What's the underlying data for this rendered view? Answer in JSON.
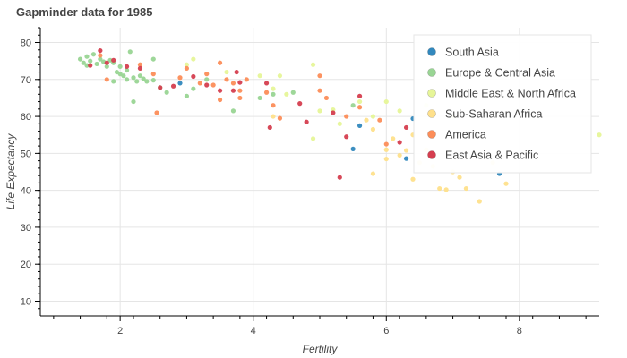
{
  "title": "Gapminder data for 1985",
  "chart_data": {
    "type": "scatter",
    "title": "Gapminder data for 1985",
    "xlabel": "Fertility",
    "ylabel": "Life Expectancy",
    "xlim": [
      0.8,
      9.2
    ],
    "ylim": [
      6,
      84
    ],
    "x_ticks": [
      2,
      4,
      6,
      8
    ],
    "y_ticks": [
      10,
      20,
      30,
      40,
      50,
      60,
      70,
      80
    ],
    "grid": true,
    "legend_position": "top-right",
    "series": [
      {
        "name": "South Asia",
        "color": "#3288bd",
        "points": [
          [
            2.9,
            69
          ],
          [
            5.5,
            51.2
          ],
          [
            5.6,
            57.5
          ],
          [
            6.3,
            48.6
          ],
          [
            6.4,
            59.4
          ],
          [
            7.7,
            44.5
          ]
        ]
      },
      {
        "name": "Europe & Central Asia",
        "color": "#99d594",
        "points": [
          [
            1.4,
            75.5
          ],
          [
            1.45,
            74.5
          ],
          [
            1.5,
            76.2
          ],
          [
            1.5,
            73.8
          ],
          [
            1.55,
            75
          ],
          [
            1.6,
            76.8
          ],
          [
            1.65,
            74.2
          ],
          [
            1.7,
            75.5
          ],
          [
            1.75,
            74.8
          ],
          [
            1.8,
            73.5
          ],
          [
            1.85,
            75.2
          ],
          [
            1.9,
            74.5
          ],
          [
            1.95,
            72
          ],
          [
            2.0,
            71.5
          ],
          [
            2.0,
            73.5
          ],
          [
            2.05,
            71
          ],
          [
            2.1,
            70
          ],
          [
            2.1,
            72.5
          ],
          [
            2.15,
            77.5
          ],
          [
            2.2,
            70.5
          ],
          [
            2.25,
            69.5
          ],
          [
            2.3,
            71
          ],
          [
            2.35,
            70.2
          ],
          [
            2.4,
            69.5
          ],
          [
            2.5,
            75.5
          ],
          [
            2.5,
            69.8
          ],
          [
            2.6,
            67.8
          ],
          [
            2.7,
            66.5
          ],
          [
            3.0,
            65.5
          ],
          [
            3.1,
            67.5
          ],
          [
            3.3,
            70
          ],
          [
            3.7,
            61.5
          ],
          [
            4.1,
            65
          ],
          [
            4.3,
            66
          ],
          [
            4.6,
            66.5
          ],
          [
            5.5,
            63
          ],
          [
            1.9,
            69.5
          ],
          [
            2.2,
            64
          ]
        ]
      },
      {
        "name": "Middle East & North Africa",
        "color": "#e6f598",
        "points": [
          [
            3.0,
            74
          ],
          [
            3.1,
            75.5
          ],
          [
            3.6,
            72
          ],
          [
            4.1,
            71
          ],
          [
            4.3,
            67.5
          ],
          [
            4.4,
            71
          ],
          [
            4.5,
            66
          ],
          [
            4.9,
            74
          ],
          [
            4.9,
            54
          ],
          [
            5.0,
            61.5
          ],
          [
            5.2,
            61.8
          ],
          [
            5.3,
            58
          ],
          [
            5.6,
            64
          ],
          [
            5.8,
            60
          ],
          [
            6.0,
            64
          ],
          [
            6.2,
            61.5
          ],
          [
            6.6,
            63
          ],
          [
            7.0,
            60
          ],
          [
            9.2,
            55
          ]
        ]
      },
      {
        "name": "Sub-Saharan Africa",
        "color": "#fee08b",
        "points": [
          [
            4.3,
            60
          ],
          [
            5.7,
            59
          ],
          [
            5.8,
            56.5
          ],
          [
            5.8,
            44.5
          ],
          [
            6.0,
            51
          ],
          [
            6.0,
            48.5
          ],
          [
            6.1,
            54
          ],
          [
            6.2,
            49.5
          ],
          [
            6.3,
            50.8
          ],
          [
            6.4,
            55
          ],
          [
            6.4,
            43
          ],
          [
            6.5,
            47.5
          ],
          [
            6.6,
            51
          ],
          [
            6.7,
            46.5
          ],
          [
            6.8,
            40.5
          ],
          [
            6.9,
            40.2
          ],
          [
            7.0,
            45
          ],
          [
            7.1,
            43.5
          ],
          [
            7.2,
            40.5
          ],
          [
            7.4,
            37
          ],
          [
            7.6,
            47.5
          ],
          [
            7.8,
            41.8
          ]
        ]
      },
      {
        "name": "America",
        "color": "#fc8d59",
        "points": [
          [
            1.7,
            76.5
          ],
          [
            1.8,
            70
          ],
          [
            2.3,
            74
          ],
          [
            2.5,
            71.5
          ],
          [
            2.55,
            61
          ],
          [
            2.9,
            70.5
          ],
          [
            3.0,
            73
          ],
          [
            3.2,
            69
          ],
          [
            3.3,
            71.5
          ],
          [
            3.4,
            68.5
          ],
          [
            3.5,
            74.5
          ],
          [
            3.5,
            64.5
          ],
          [
            3.6,
            70
          ],
          [
            3.7,
            69
          ],
          [
            3.8,
            67
          ],
          [
            3.8,
            65
          ],
          [
            3.9,
            70
          ],
          [
            4.2,
            66.5
          ],
          [
            4.3,
            63
          ],
          [
            4.4,
            59.5
          ],
          [
            5.0,
            71
          ],
          [
            5.0,
            67
          ],
          [
            5.1,
            65
          ],
          [
            5.4,
            60
          ],
          [
            5.6,
            62.5
          ],
          [
            5.9,
            59
          ],
          [
            6.0,
            52.5
          ]
        ]
      },
      {
        "name": "East Asia & Pacific",
        "color": "#d53e4f",
        "points": [
          [
            1.55,
            73.8
          ],
          [
            1.7,
            77.8
          ],
          [
            1.8,
            74.5
          ],
          [
            1.9,
            75.2
          ],
          [
            2.1,
            73.5
          ],
          [
            2.3,
            73
          ],
          [
            2.6,
            67.8
          ],
          [
            2.8,
            68.2
          ],
          [
            3.1,
            70.8
          ],
          [
            3.3,
            68.5
          ],
          [
            3.5,
            67
          ],
          [
            3.7,
            67
          ],
          [
            3.75,
            72
          ],
          [
            3.8,
            69.2
          ],
          [
            4.2,
            69
          ],
          [
            4.25,
            57
          ],
          [
            4.7,
            63.5
          ],
          [
            4.8,
            58.5
          ],
          [
            5.2,
            61
          ],
          [
            5.3,
            43.5
          ],
          [
            5.4,
            54.5
          ],
          [
            5.6,
            65.5
          ],
          [
            6.2,
            53
          ],
          [
            6.3,
            57
          ]
        ]
      }
    ]
  }
}
